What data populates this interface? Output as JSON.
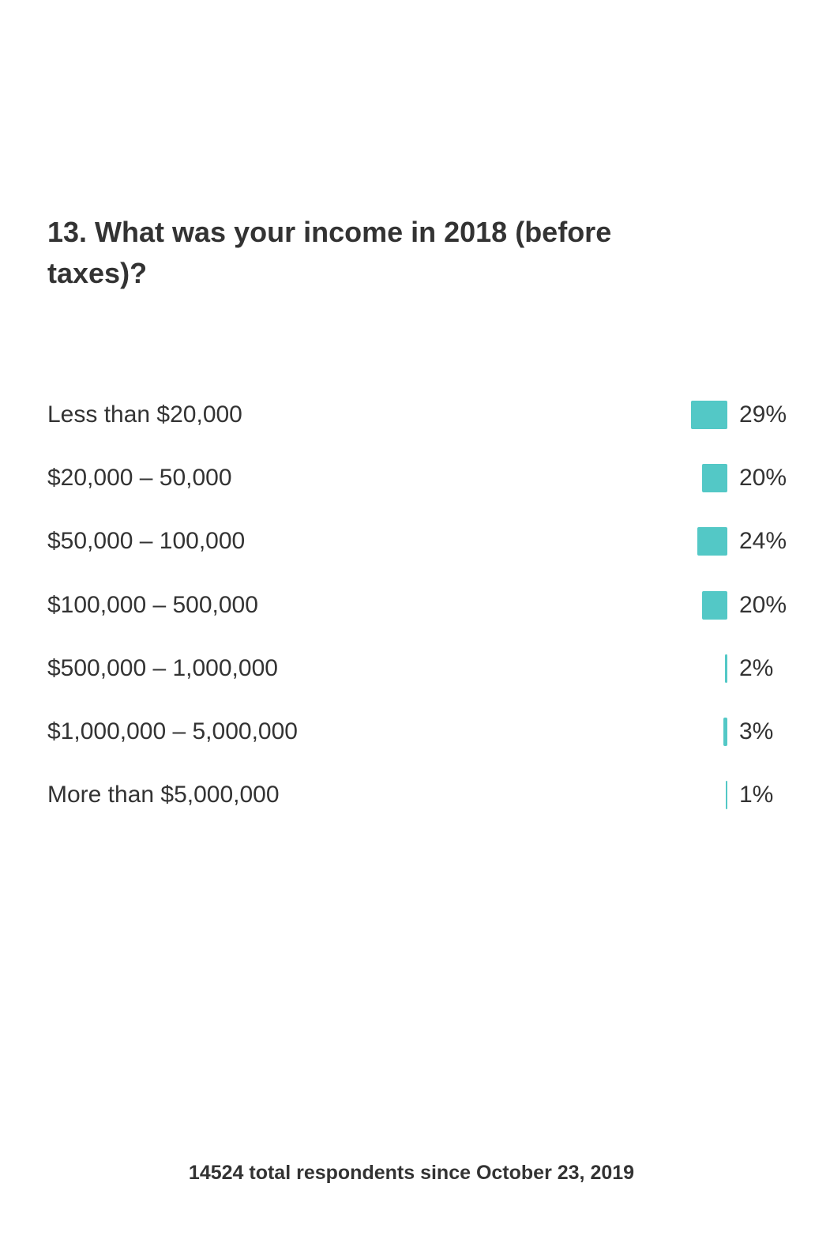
{
  "question": {
    "title": "13. What was your income in 2018 (before taxes)?"
  },
  "chart_data": {
    "type": "bar",
    "orientation": "horizontal",
    "categories": [
      "Less than $20,000",
      "$20,000 – 50,000",
      "$50,000 – 100,000",
      "$100,000 – 500,000",
      "$500,000 – 1,000,000",
      "$1,000,000 – 5,000,000",
      "More than $5,000,000"
    ],
    "values": [
      29,
      20,
      24,
      20,
      2,
      3,
      1
    ],
    "value_labels": [
      "29%",
      "20%",
      "24%",
      "20%",
      "2%",
      "3%",
      "1%"
    ],
    "unit": "%",
    "bar_color": "#53c8c6",
    "grid": false,
    "legend": "none"
  },
  "footer": {
    "text": "14524 total respondents since October 23, 2019"
  }
}
